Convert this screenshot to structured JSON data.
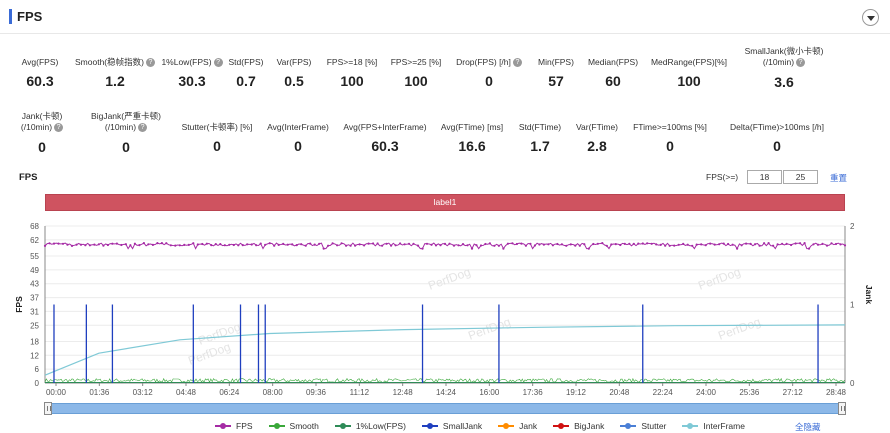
{
  "header": {
    "title": "FPS"
  },
  "stats_row1": [
    {
      "label": "Avg(FPS)",
      "value": "60.3",
      "help": false
    },
    {
      "label": "Smooth(稳帧指数)",
      "value": "1.2",
      "help": true
    },
    {
      "label": "1%Low(FPS)",
      "value": "30.3",
      "help": true
    },
    {
      "label": "Std(FPS)",
      "value": "0.7",
      "help": false
    },
    {
      "label": "Var(FPS)",
      "value": "0.5",
      "help": false
    },
    {
      "label": "FPS>=18 [%]",
      "value": "100",
      "help": false
    },
    {
      "label": "FPS>=25 [%]",
      "value": "100",
      "help": false
    },
    {
      "label": "Drop(FPS) [/h]",
      "value": "0",
      "help": true
    },
    {
      "label": "Min(FPS)",
      "value": "57",
      "help": false
    },
    {
      "label": "Median(FPS)",
      "value": "60",
      "help": false
    },
    {
      "label": "MedRange(FPS)[%]",
      "value": "100",
      "help": false
    },
    {
      "label": "SmallJank(微小卡顿)",
      "label2": "(/10min)",
      "value": "3.6",
      "help": true
    }
  ],
  "stats_row2": [
    {
      "label": "Jank(卡顿)",
      "label2": "(/10min)",
      "value": "0",
      "help": true
    },
    {
      "label": "BigJank(严重卡顿)",
      "label2": "(/10min)",
      "value": "0",
      "help": true
    },
    {
      "label": "Stutter(卡顿率) [%]",
      "value": "0",
      "help": false
    },
    {
      "label": "Avg(InterFrame)",
      "value": "0",
      "help": false
    },
    {
      "label": "Avg(FPS+InterFrame)",
      "value": "60.3",
      "help": false
    },
    {
      "label": "Avg(FTime) [ms]",
      "value": "16.6",
      "help": false
    },
    {
      "label": "Std(FTime)",
      "value": "1.7",
      "help": false
    },
    {
      "label": "Var(FTime)",
      "value": "2.8",
      "help": false
    },
    {
      "label": "FTime>=100ms [%]",
      "value": "0",
      "help": false
    },
    {
      "label": "Delta(FTime)>100ms [/h]",
      "value": "0",
      "help": false
    }
  ],
  "controls": {
    "section_title": "FPS",
    "threshold_label": "FPS(>=)",
    "threshold1": "18",
    "threshold2": "25",
    "reset_label": "重置"
  },
  "label_band": "label1",
  "watermark": "PerfDog",
  "colors": {
    "fps": "#a52ba5",
    "smooth": "#3aa83a",
    "low": "#2e8b57",
    "smalljank": "#1f3fbf",
    "jank": "#ff8c00",
    "bigjank": "#d01010",
    "stutter": "#4a7fd6",
    "interframe": "#7fc9d6",
    "band": "#cf5360",
    "accent": "#3a6bd6"
  },
  "chart_data": {
    "type": "line",
    "xlabel": "",
    "ylabel": "FPS",
    "y2label": "Jank",
    "ylim": [
      0,
      68
    ],
    "y2lim": [
      0,
      2
    ],
    "yticks": [
      0,
      6,
      12,
      18,
      25,
      31,
      37,
      43,
      49,
      55,
      62,
      68
    ],
    "y2ticks": [
      0,
      1,
      2
    ],
    "xlim_seconds": [
      0,
      1780
    ],
    "xticks": [
      "00:00",
      "01:36",
      "03:12",
      "04:48",
      "06:24",
      "08:00",
      "09:36",
      "11:12",
      "12:48",
      "14:24",
      "16:00",
      "17:36",
      "19:12",
      "20:48",
      "22:24",
      "24:00",
      "25:36",
      "27:12",
      "28:48"
    ],
    "grid": true,
    "legend_position": "bottom",
    "fps_summary": {
      "mean": 60.3,
      "min": 57,
      "max": 62
    },
    "smalljank_times_seconds": [
      20,
      92,
      150,
      330,
      435,
      475,
      490,
      840,
      1010,
      1330,
      1720
    ],
    "smalljank_value": 1,
    "interframe_curve": [
      [
        0,
        0.1
      ],
      [
        120,
        0.38
      ],
      [
        300,
        0.55
      ],
      [
        500,
        0.63
      ],
      [
        800,
        0.68
      ],
      [
        1100,
        0.71
      ],
      [
        1400,
        0.73
      ],
      [
        1780,
        0.74
      ]
    ],
    "series": [
      {
        "name": "FPS"
      },
      {
        "name": "Smooth"
      },
      {
        "name": "1%Low(FPS)"
      },
      {
        "name": "SmallJank"
      },
      {
        "name": "Jank"
      },
      {
        "name": "BigJank"
      },
      {
        "name": "Stutter"
      },
      {
        "name": "InterFrame"
      }
    ]
  },
  "legend_hide_all": "全隐藏"
}
